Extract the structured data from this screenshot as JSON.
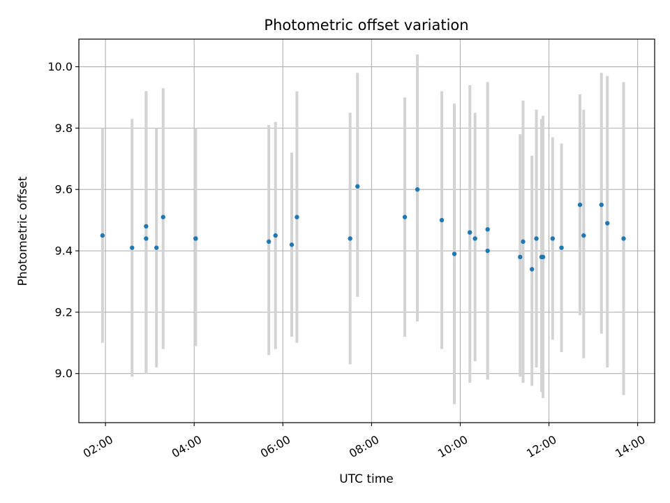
{
  "chart_data": {
    "type": "scatter",
    "title": "Photometric offset variation",
    "xlabel": "UTC time",
    "ylabel": "Photometric offset",
    "x_axis_type": "time",
    "xlim": [
      "01:24",
      "14:23"
    ],
    "ylim": [
      8.84,
      10.09
    ],
    "x_ticks": [
      "02:00",
      "04:00",
      "06:00",
      "08:00",
      "10:00",
      "12:00",
      "14:00"
    ],
    "y_ticks": [
      9.0,
      9.2,
      9.4,
      9.6,
      9.8,
      10.0
    ],
    "y_tick_labels": [
      "9.0",
      "9.2",
      "9.4",
      "9.6",
      "9.8",
      "10.0"
    ],
    "grid": true,
    "legend": "none",
    "colors": {
      "marker": "#1f77b4",
      "errorbar": "#d3d3d3",
      "grid": "#b0b0b0"
    },
    "points": [
      {
        "x": "01:56",
        "y": 9.45,
        "ylow": 9.1,
        "yhigh": 9.8
      },
      {
        "x": "02:36",
        "y": 9.41,
        "ylow": 8.99,
        "yhigh": 9.83
      },
      {
        "x": "02:55",
        "y": 9.48,
        "ylow": 9.0,
        "yhigh": 9.92
      },
      {
        "x": "02:55",
        "y": 9.44,
        "ylow": 9.0,
        "yhigh": 9.92
      },
      {
        "x": "03:09",
        "y": 9.41,
        "ylow": 9.02,
        "yhigh": 9.8
      },
      {
        "x": "03:18",
        "y": 9.51,
        "ylow": 9.08,
        "yhigh": 9.93
      },
      {
        "x": "04:02",
        "y": 9.44,
        "ylow": 9.09,
        "yhigh": 9.8
      },
      {
        "x": "04:02",
        "y": 9.44,
        "ylow": 9.09,
        "yhigh": 9.8
      },
      {
        "x": "05:41",
        "y": 9.43,
        "ylow": 9.06,
        "yhigh": 9.81
      },
      {
        "x": "05:50",
        "y": 9.45,
        "ylow": 9.08,
        "yhigh": 9.82
      },
      {
        "x": "06:12",
        "y": 9.42,
        "ylow": 9.12,
        "yhigh": 9.72
      },
      {
        "x": "06:19",
        "y": 9.51,
        "ylow": 9.1,
        "yhigh": 9.92
      },
      {
        "x": "07:31",
        "y": 9.44,
        "ylow": 9.03,
        "yhigh": 9.85
      },
      {
        "x": "07:41",
        "y": 9.61,
        "ylow": 9.25,
        "yhigh": 9.98
      },
      {
        "x": "08:45",
        "y": 9.51,
        "ylow": 9.12,
        "yhigh": 9.9
      },
      {
        "x": "09:02",
        "y": 9.6,
        "ylow": 9.17,
        "yhigh": 10.04
      },
      {
        "x": "09:35",
        "y": 9.5,
        "ylow": 9.08,
        "yhigh": 9.92
      },
      {
        "x": "09:52",
        "y": 9.39,
        "ylow": 8.9,
        "yhigh": 9.88
      },
      {
        "x": "10:13",
        "y": 9.46,
        "ylow": 8.97,
        "yhigh": 9.94
      },
      {
        "x": "10:20",
        "y": 9.44,
        "ylow": 9.04,
        "yhigh": 9.85
      },
      {
        "x": "10:37",
        "y": 9.47,
        "ylow": 8.98,
        "yhigh": 9.95
      },
      {
        "x": "10:37",
        "y": 9.4,
        "ylow": 8.98,
        "yhigh": 9.95
      },
      {
        "x": "11:21",
        "y": 9.38,
        "ylow": 8.99,
        "yhigh": 9.78
      },
      {
        "x": "11:25",
        "y": 9.43,
        "ylow": 8.97,
        "yhigh": 9.89
      },
      {
        "x": "11:37",
        "y": 9.34,
        "ylow": 8.96,
        "yhigh": 9.71
      },
      {
        "x": "11:43",
        "y": 9.44,
        "ylow": 9.02,
        "yhigh": 9.86
      },
      {
        "x": "11:50",
        "y": 9.38,
        "ylow": 8.94,
        "yhigh": 9.83
      },
      {
        "x": "11:52",
        "y": 9.38,
        "ylow": 8.92,
        "yhigh": 9.84
      },
      {
        "x": "12:05",
        "y": 9.44,
        "ylow": 9.11,
        "yhigh": 9.77
      },
      {
        "x": "12:17",
        "y": 9.41,
        "ylow": 9.07,
        "yhigh": 9.75
      },
      {
        "x": "12:42",
        "y": 9.55,
        "ylow": 9.19,
        "yhigh": 9.91
      },
      {
        "x": "12:47",
        "y": 9.45,
        "ylow": 9.05,
        "yhigh": 9.86
      },
      {
        "x": "13:11",
        "y": 9.55,
        "ylow": 9.13,
        "yhigh": 9.98
      },
      {
        "x": "13:19",
        "y": 9.49,
        "ylow": 9.02,
        "yhigh": 9.97
      },
      {
        "x": "13:41",
        "y": 9.44,
        "ylow": 8.93,
        "yhigh": 9.95
      }
    ]
  }
}
